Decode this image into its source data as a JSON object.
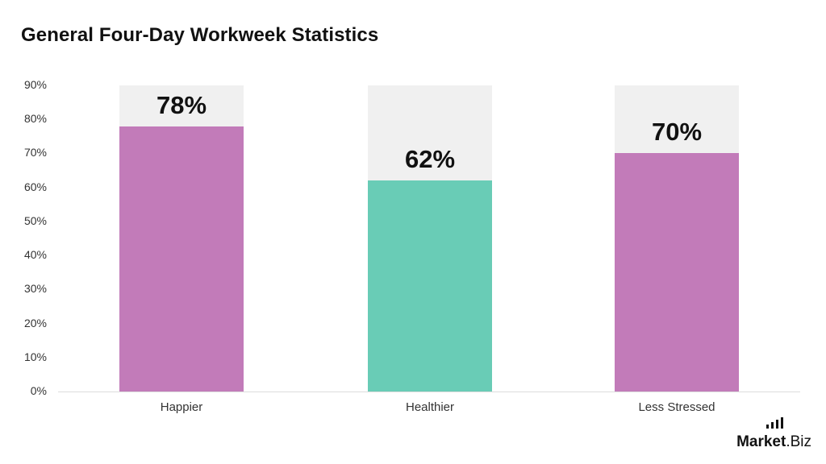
{
  "title": "General Four-Day Workweek Statistics",
  "logo": {
    "brand": "Market",
    "suffix": ".Biz"
  },
  "chart_data": {
    "type": "bar",
    "title": "General Four-Day Workweek Statistics",
    "categories": [
      "Happier",
      "Healthier",
      "Less Stressed"
    ],
    "values": [
      78,
      62,
      70
    ],
    "value_labels": [
      "78%",
      "62%",
      "70%"
    ],
    "colors": [
      "#c27bb9",
      "#69ccb6",
      "#c27bb9"
    ],
    "background_bar_color": "#f0f0f0",
    "xlabel": "",
    "ylabel": "",
    "ylim": [
      0,
      90
    ],
    "yticks": [
      "0%",
      "10%",
      "20%",
      "30%",
      "40%",
      "50%",
      "60%",
      "70%",
      "80%",
      "90%"
    ],
    "grid": false,
    "legend": null
  }
}
